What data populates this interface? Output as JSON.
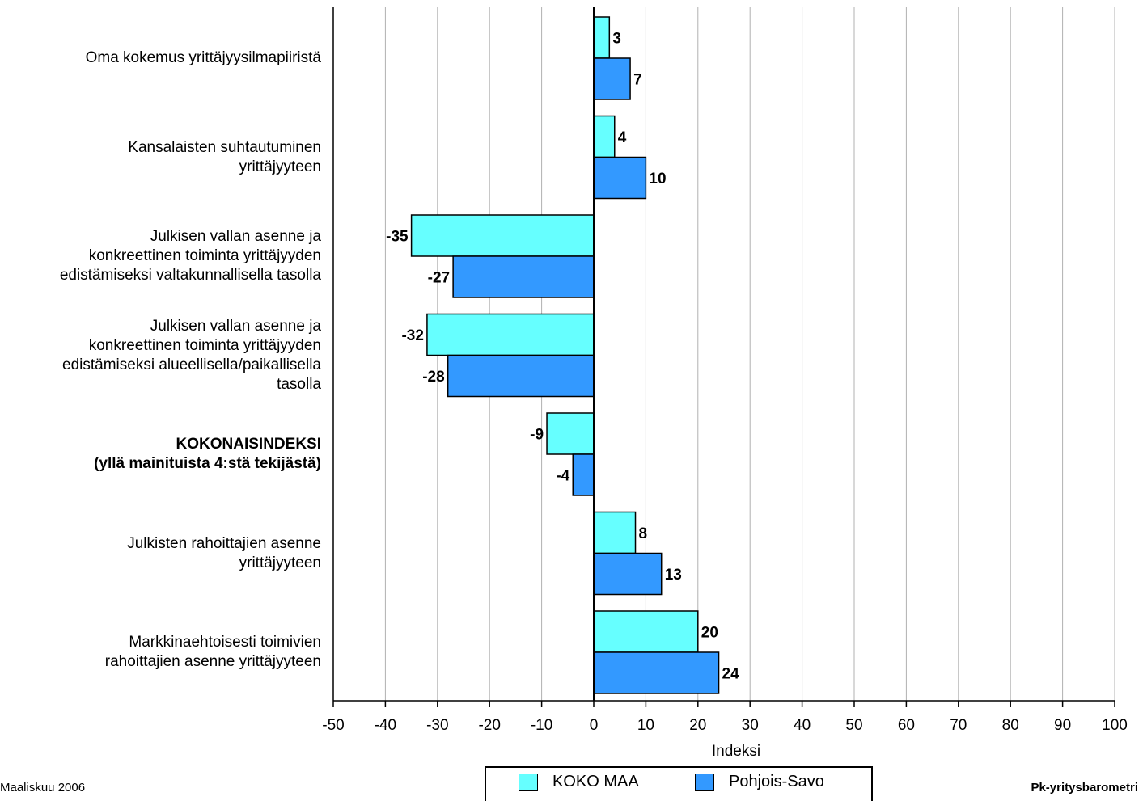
{
  "chart_data": {
    "type": "bar",
    "orientation": "horizontal",
    "categories": [
      "Oma kokemus yrittäjyysilmapiiristä",
      "Kansalaisten suhtautuminen yrittäjyyteen",
      "Julkisen vallan asenne ja konkreettinen toiminta yrittäjyyden edistämiseksi valtakunnallisella tasolla",
      "Julkisen vallan asenne ja konkreettinen toiminta yrittäjyyden edistämiseksi alueellisella/paikallisella tasolla",
      "KOKONAISINDEKSI (yllä mainituista 4:stä tekijästä)",
      "Julkisten rahoittajien asenne yrittäjyyteen",
      "Markkinaehtoisesti toimivien rahoittajien asenne yrittäjyyteen"
    ],
    "category_lines": [
      [
        "Oma kokemus yrittäjyysilmapiiristä"
      ],
      [
        "Kansalaisten suhtautuminen",
        "yrittäjyyteen"
      ],
      [
        "Julkisen vallan asenne ja",
        "konkreettinen toiminta yrittäjyyden",
        "edistämiseksi valtakunnallisella tasolla"
      ],
      [
        "Julkisen vallan asenne ja",
        "konkreettinen toiminta yrittäjyyden",
        "edistämiseksi alueellisella/paikallisella",
        "tasolla"
      ],
      [
        "KOKONAISINDEKSI",
        "(yllä mainituista 4:stä tekijästä)"
      ],
      [
        "Julkisten rahoittajien asenne",
        "yrittäjyyteen"
      ],
      [
        "Markkinaehtoisesti toimivien",
        "rahoittajien asenne yrittäjyyteen"
      ]
    ],
    "bold_category_index": 4,
    "series": [
      {
        "name": "KOKO MAA",
        "color": "#66ffff",
        "values": [
          3,
          4,
          -35,
          -32,
          -9,
          8,
          20
        ]
      },
      {
        "name": "Pohjois-Savo",
        "color": "#3399ff",
        "values": [
          7,
          10,
          -27,
          -28,
          -4,
          13,
          24
        ]
      }
    ],
    "xlabel": "Indeksi",
    "xlim": [
      -50,
      100
    ],
    "xticks": [
      -50,
      -40,
      -30,
      -20,
      -10,
      0,
      10,
      20,
      30,
      40,
      50,
      60,
      70,
      80,
      90,
      100
    ],
    "grid": true,
    "legend_position": "bottom-center",
    "data_labels": true
  },
  "footer": {
    "date": "Maaliskuu 2006",
    "source": "Pk-yritysbarometri"
  }
}
